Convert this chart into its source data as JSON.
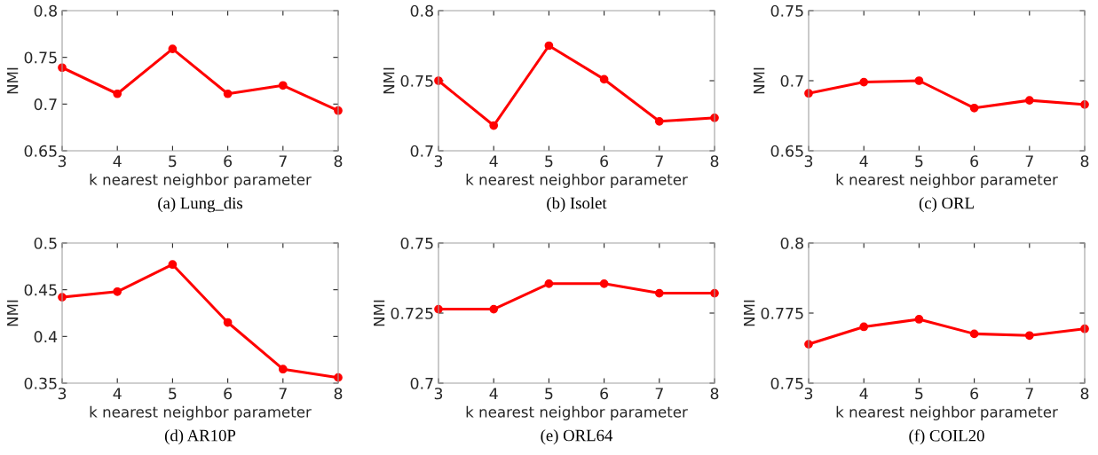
{
  "chart_data": [
    {
      "type": "line",
      "title": "(a) Lung_dis",
      "xlabel": "k nearest neighbor parameter",
      "ylabel": "NMI",
      "x": [
        3,
        4,
        5,
        6,
        7,
        8
      ],
      "series": [
        {
          "color": "#ff0000",
          "values": [
            0.739,
            0.711,
            0.759,
            0.711,
            0.72,
            0.693
          ]
        }
      ],
      "xlim": [
        3,
        8
      ],
      "xticks": [
        3,
        4,
        5,
        6,
        7,
        8
      ],
      "ylim": [
        0.65,
        0.8
      ],
      "yticks": [
        0.65,
        0.7,
        0.75,
        0.8
      ],
      "marker": "circle",
      "line_style": "solid"
    },
    {
      "type": "line",
      "title": "(b) Isolet",
      "xlabel": "k nearest neighbor parameter",
      "ylabel": "NMI",
      "x": [
        3,
        4,
        5,
        6,
        7,
        8
      ],
      "series": [
        {
          "color": "#ff0000",
          "values": [
            0.75,
            0.718,
            0.775,
            0.751,
            0.721,
            0.7235
          ]
        }
      ],
      "xlim": [
        3,
        8
      ],
      "xticks": [
        3,
        4,
        5,
        6,
        7,
        8
      ],
      "ylim": [
        0.7,
        0.8
      ],
      "yticks": [
        0.7,
        0.75,
        0.8
      ],
      "marker": "circle",
      "line_style": "solid"
    },
    {
      "type": "line",
      "title": "(c) ORL",
      "xlabel": "k nearest neighbor parameter",
      "ylabel": "NMI",
      "x": [
        3,
        4,
        5,
        6,
        7,
        8
      ],
      "series": [
        {
          "color": "#ff0000",
          "values": [
            0.691,
            0.699,
            0.7,
            0.6805,
            0.686,
            0.683
          ]
        }
      ],
      "xlim": [
        3,
        8
      ],
      "xticks": [
        3,
        4,
        5,
        6,
        7,
        8
      ],
      "ylim": [
        0.65,
        0.75
      ],
      "yticks": [
        0.65,
        0.7,
        0.75
      ],
      "marker": "circle",
      "line_style": "solid"
    },
    {
      "type": "line",
      "title": "(d) AR10P",
      "xlabel": "k nearest neighbor parameter",
      "ylabel": "NMI",
      "x": [
        3,
        4,
        5,
        6,
        7,
        8
      ],
      "series": [
        {
          "color": "#ff0000",
          "values": [
            0.442,
            0.448,
            0.477,
            0.415,
            0.365,
            0.356
          ]
        }
      ],
      "xlim": [
        3,
        8
      ],
      "xticks": [
        3,
        4,
        5,
        6,
        7,
        8
      ],
      "ylim": [
        0.35,
        0.5
      ],
      "yticks": [
        0.35,
        0.4,
        0.45,
        0.5
      ],
      "marker": "circle",
      "line_style": "solid"
    },
    {
      "type": "line",
      "title": "(e) ORL64",
      "xlabel": "k nearest neighbor parameter",
      "ylabel": "NMI",
      "x": [
        3,
        4,
        5,
        6,
        7,
        8
      ],
      "series": [
        {
          "color": "#ff0000",
          "values": [
            0.7264,
            0.7264,
            0.7355,
            0.7355,
            0.7321,
            0.7321
          ]
        }
      ],
      "xlim": [
        3,
        8
      ],
      "xticks": [
        3,
        4,
        5,
        6,
        7,
        8
      ],
      "ylim": [
        0.7,
        0.75
      ],
      "yticks": [
        0.7,
        0.725,
        0.75
      ],
      "marker": "circle",
      "line_style": "solid"
    },
    {
      "type": "line",
      "title": "(f) COIL20",
      "xlabel": "k nearest neighbor parameter",
      "ylabel": "NMI",
      "x": [
        3,
        4,
        5,
        6,
        7,
        8
      ],
      "series": [
        {
          "color": "#ff0000",
          "values": [
            0.7639,
            0.7701,
            0.7728,
            0.7676,
            0.767,
            0.7694
          ]
        }
      ],
      "xlim": [
        3,
        8
      ],
      "xticks": [
        3,
        4,
        5,
        6,
        7,
        8
      ],
      "ylim": [
        0.75,
        0.8
      ],
      "yticks": [
        0.75,
        0.775,
        0.8
      ],
      "marker": "circle",
      "line_style": "solid"
    }
  ]
}
